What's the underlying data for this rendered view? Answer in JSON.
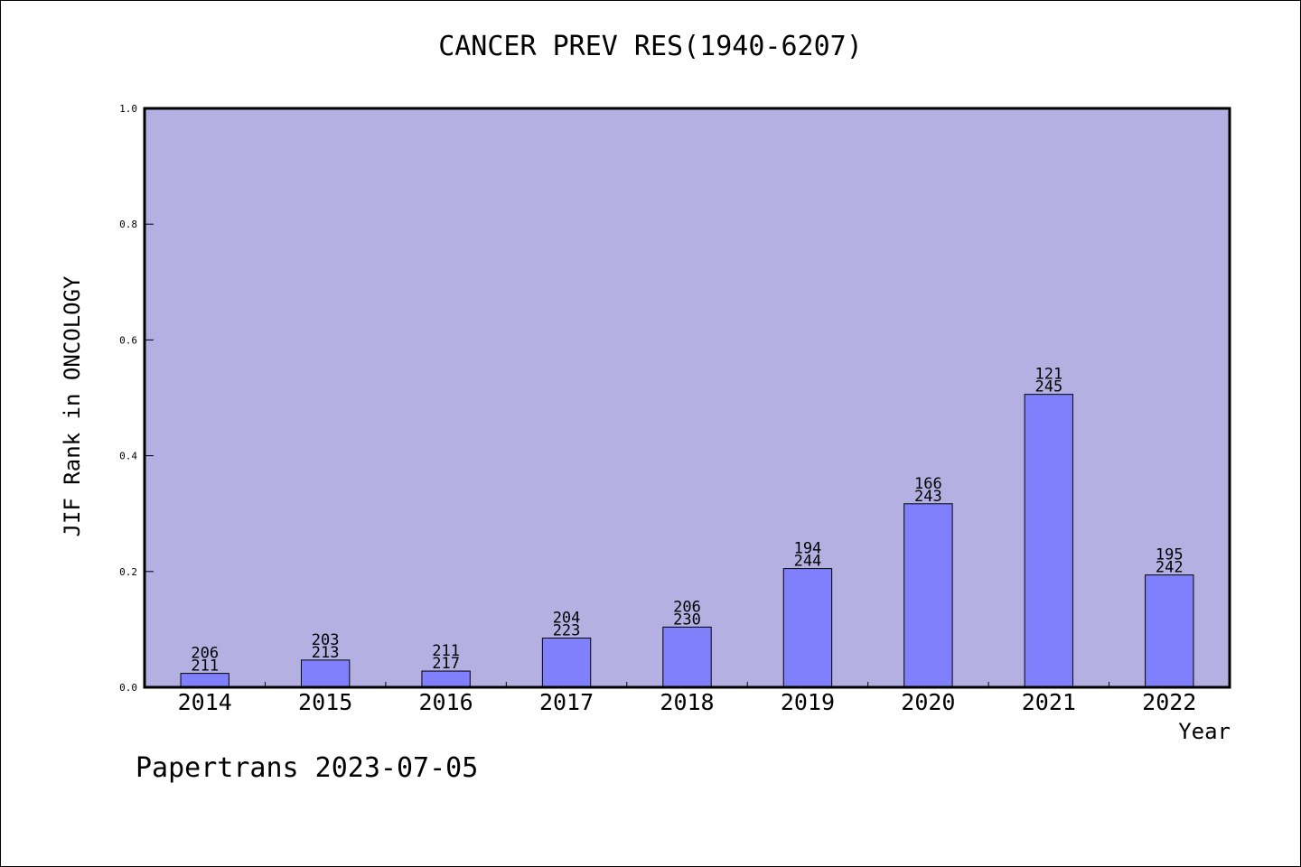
{
  "colors": {
    "plot_background": "#b5b0e2",
    "bar_fill": "#8080fc",
    "bar_stroke": "#000000",
    "axis": "#000000"
  },
  "chart_data": {
    "type": "bar",
    "title": "CANCER PREV RES(1940-6207)",
    "xlabel": "Year",
    "ylabel": "JIF Rank in ONCOLOGY",
    "ylim": [
      0,
      1.0
    ],
    "yticks": [
      "0.0",
      "0.2",
      "0.4",
      "0.6",
      "0.8",
      "1.0"
    ],
    "grid": false,
    "categories": [
      "2014",
      "2015",
      "2016",
      "2017",
      "2018",
      "2019",
      "2020",
      "2021",
      "2022"
    ],
    "values": [
      0.024,
      0.047,
      0.028,
      0.085,
      0.104,
      0.205,
      0.317,
      0.506,
      0.194
    ],
    "bar_labels": [
      {
        "rank": "206",
        "total": "211"
      },
      {
        "rank": "203",
        "total": "213"
      },
      {
        "rank": "211",
        "total": "217"
      },
      {
        "rank": "204",
        "total": "223"
      },
      {
        "rank": "206",
        "total": "230"
      },
      {
        "rank": "194",
        "total": "244"
      },
      {
        "rank": "166",
        "total": "243"
      },
      {
        "rank": "121",
        "total": "245"
      },
      {
        "rank": "195",
        "total": "242"
      }
    ]
  },
  "footer": "Papertrans 2023-07-05"
}
